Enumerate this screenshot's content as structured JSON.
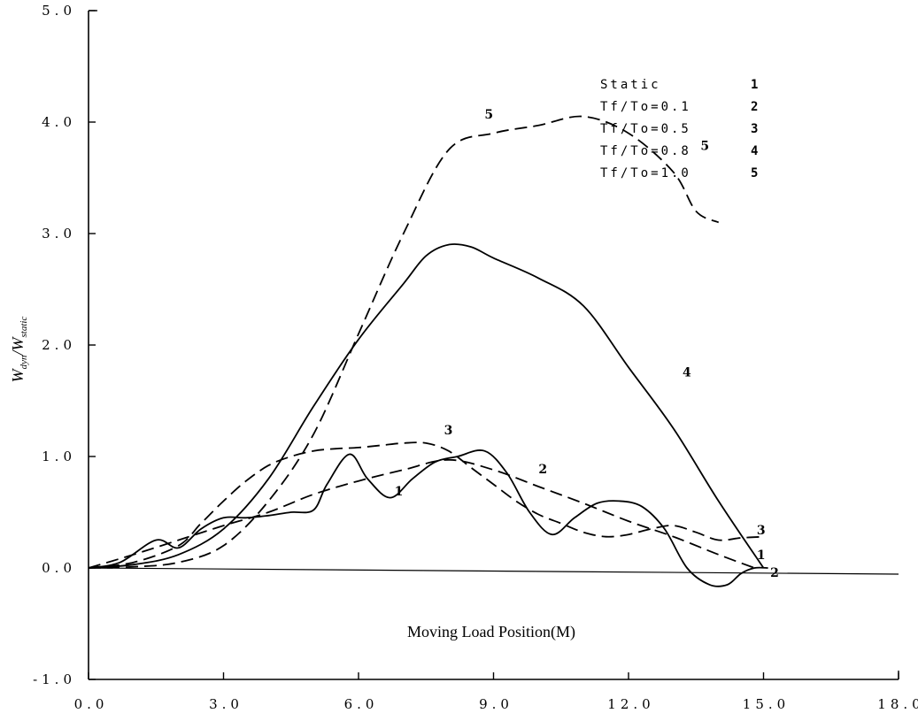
{
  "chart_data": {
    "type": "line",
    "xlabel": "Moving Load Position(M)",
    "ylabel": {
      "W_main": "W",
      "dyn_sub": "dyn",
      "sep": "/W",
      "static_sub": "static"
    },
    "xlim": [
      0,
      18
    ],
    "ylim": [
      -1,
      5
    ],
    "x_ticks": [
      "0.0",
      "3.0",
      "6.0",
      "9.0",
      "12.0",
      "15.0",
      "18.0"
    ],
    "y_ticks": [
      "5.0",
      "4.0",
      "3.0",
      "2.0",
      "1.0",
      "0.0",
      "-1.0"
    ],
    "grid": false,
    "legend": {
      "position": "top-right",
      "entries": [
        {
          "label": "Static",
          "num": "1"
        },
        {
          "label": "Tf/To=0.1",
          "num": "2"
        },
        {
          "label": "Tf/To=0.5",
          "num": "3"
        },
        {
          "label": "Tf/To=0.8",
          "num": "4"
        },
        {
          "label": "Tf/To=1.0",
          "num": "5"
        }
      ]
    },
    "series": [
      {
        "name": "1",
        "style": "dashed",
        "label_at": [
          6.8,
          0.65
        ],
        "x": [
          0,
          1,
          2,
          3,
          4,
          5,
          6,
          7,
          8,
          9,
          10,
          11,
          12,
          13,
          14,
          14.8
        ],
        "y": [
          0,
          0.12,
          0.25,
          0.38,
          0.5,
          0.66,
          0.78,
          0.88,
          0.97,
          0.88,
          0.73,
          0.58,
          0.42,
          0.28,
          0.12,
          0.0
        ]
      },
      {
        "name": "2",
        "style": "solid",
        "label_at": [
          10.0,
          0.85
        ],
        "x": [
          0,
          0.7,
          1.5,
          2.0,
          2.5,
          3.0,
          3.5,
          4.0,
          4.5,
          5.0,
          5.3,
          5.8,
          6.2,
          6.7,
          7.2,
          7.7,
          8.2,
          8.8,
          9.3,
          9.8,
          10.3,
          10.8,
          11.3,
          11.8,
          12.3,
          12.8,
          13.3,
          13.8,
          14.2,
          14.5,
          14.8,
          15.1
        ],
        "y": [
          0,
          0.05,
          0.25,
          0.18,
          0.35,
          0.45,
          0.45,
          0.47,
          0.5,
          0.52,
          0.75,
          1.02,
          0.8,
          0.63,
          0.8,
          0.95,
          1.0,
          1.05,
          0.85,
          0.5,
          0.3,
          0.45,
          0.58,
          0.6,
          0.55,
          0.35,
          0.0,
          -0.15,
          -0.15,
          -0.05,
          0.0,
          0.0
        ]
      },
      {
        "name": "3",
        "style": "dashed",
        "label_at": [
          7.9,
          1.2
        ],
        "x": [
          0,
          1,
          2,
          2.5,
          3,
          3.5,
          4,
          4.5,
          5,
          5.5,
          6,
          6.5,
          7,
          7.5,
          8,
          8.5,
          9,
          9.5,
          10,
          10.5,
          11,
          11.5,
          12,
          12.5,
          13,
          13.5,
          14,
          14.5,
          15
        ],
        "y": [
          0,
          0.05,
          0.2,
          0.4,
          0.6,
          0.78,
          0.92,
          1.0,
          1.05,
          1.07,
          1.08,
          1.1,
          1.12,
          1.12,
          1.05,
          0.9,
          0.75,
          0.6,
          0.48,
          0.4,
          0.32,
          0.28,
          0.3,
          0.35,
          0.38,
          0.32,
          0.25,
          0.27,
          0.28
        ]
      },
      {
        "name": "4",
        "style": "solid",
        "label_at": [
          13.2,
          1.72
        ],
        "x": [
          0,
          1,
          2,
          3,
          4,
          5,
          6,
          7,
          7.5,
          8,
          8.5,
          9,
          10,
          11,
          12,
          13,
          14,
          15
        ],
        "y": [
          0,
          0.03,
          0.12,
          0.35,
          0.8,
          1.45,
          2.05,
          2.55,
          2.8,
          2.9,
          2.88,
          2.78,
          2.6,
          2.35,
          1.8,
          1.25,
          0.6,
          0.0
        ]
      },
      {
        "name": "5",
        "style": "dashed",
        "label_at": [
          8.8,
          4.03
        ],
        "x": [
          0,
          1,
          2,
          3,
          4,
          5,
          6,
          7,
          8,
          9,
          10,
          11,
          12,
          13,
          13.5,
          14
        ],
        "y": [
          0,
          0.01,
          0.05,
          0.2,
          0.6,
          1.2,
          2.1,
          3.0,
          3.75,
          3.9,
          3.97,
          4.05,
          3.9,
          3.55,
          3.2,
          3.1
        ]
      }
    ],
    "extra_curve_labels": [
      {
        "text": "5",
        "at": [
          13.6,
          3.75
        ]
      }
    ]
  }
}
